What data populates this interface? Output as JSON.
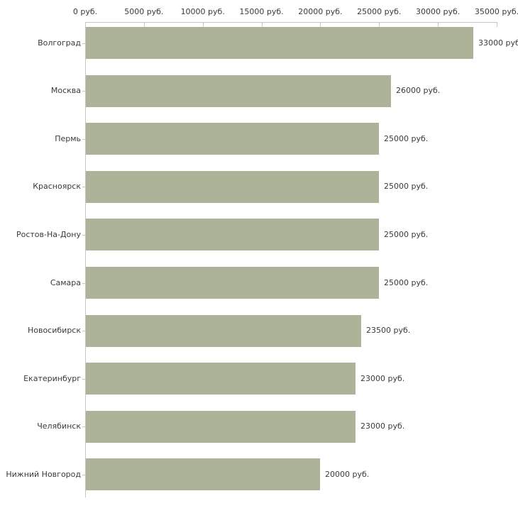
{
  "chart_data": {
    "type": "bar",
    "orientation": "horizontal",
    "title": "",
    "unit": "руб.",
    "categories": [
      "Волгоград",
      "Москва",
      "Пермь",
      "Красноярск",
      "Ростов-На-Дону",
      "Самара",
      "Новосибирск",
      "Екатеринбург",
      "Челябинск",
      "Нижний Новгород"
    ],
    "values": [
      33000,
      26000,
      25000,
      25000,
      25000,
      25000,
      23500,
      23000,
      23000,
      20000
    ],
    "value_labels": [
      "33000 руб",
      "26000 руб.",
      "25000 руб.",
      "25000 руб.",
      "25000 руб.",
      "25000 руб.",
      "23500 руб.",
      "23000 руб.",
      "23000 руб.",
      "20000 руб."
    ],
    "x_axis": {
      "position": "top",
      "range": [
        0,
        35000
      ],
      "tick_values": [
        0,
        5000,
        10000,
        15000,
        20000,
        25000,
        30000,
        35000
      ],
      "tick_labels": [
        "0 руб.",
        "5000 руб.",
        "10000 руб.",
        "15000 руб.",
        "20000 руб.",
        "25000 руб.",
        "30000 руб.",
        "35000 руб."
      ]
    },
    "grid": false,
    "legend": false,
    "colors": {
      "bar": "#adb399",
      "axis_line": "#c6c6c6",
      "tick": "#cbcba6",
      "text": "#3a3a3a",
      "background": "#ffffff"
    }
  }
}
